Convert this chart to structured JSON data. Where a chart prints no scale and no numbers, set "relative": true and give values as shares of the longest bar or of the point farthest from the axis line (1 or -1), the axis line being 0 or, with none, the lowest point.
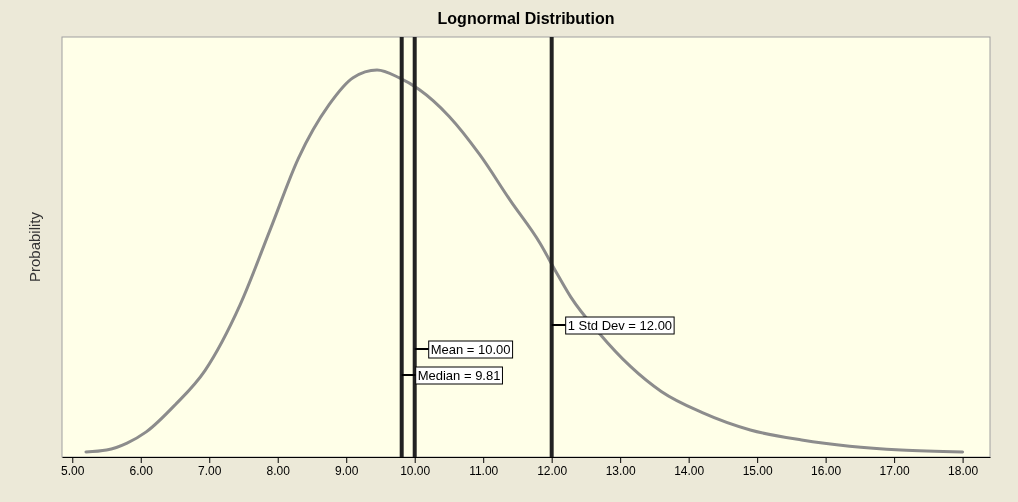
{
  "chart_data": {
    "type": "line",
    "title": "Lognormal Distribution",
    "ylabel": "Probability",
    "relative": true,
    "marker": "none",
    "line_style": "solid",
    "x": [
      5.2,
      5.5,
      5.8,
      6.08,
      6.5,
      6.94,
      7.45,
      7.9,
      8.3,
      8.75,
      9.1,
      9.45,
      9.77,
      10.06,
      10.5,
      10.95,
      11.4,
      11.83,
      12.05,
      12.28,
      12.7,
      13.15,
      13.6,
      14.2,
      14.9,
      15.65,
      16.35,
      17.1,
      18.0
    ],
    "series": [
      {
        "color": "#8c8c8c",
        "values": [
          0.008,
          0.013,
          0.031,
          0.06,
          0.13,
          0.22,
          0.39,
          0.59,
          0.77,
          0.91,
          0.98,
          1.0,
          0.98,
          0.95,
          0.88,
          0.78,
          0.66,
          0.55,
          0.48,
          0.41,
          0.315,
          0.23,
          0.165,
          0.11,
          0.065,
          0.039,
          0.023,
          0.013,
          0.008
        ]
      }
    ],
    "xlim": [
      4.85,
      18.4
    ],
    "xticks": [
      {
        "value": 5,
        "label": "5.00"
      },
      {
        "value": 6,
        "label": "6.00"
      },
      {
        "value": 7,
        "label": "7.00"
      },
      {
        "value": 8,
        "label": "8.00"
      },
      {
        "value": 9,
        "label": "9.00"
      },
      {
        "value": 10,
        "label": "10.00"
      },
      {
        "value": 11,
        "label": "11.00"
      },
      {
        "value": 12,
        "label": "12.00"
      },
      {
        "value": 13,
        "label": "13.00"
      },
      {
        "value": 14,
        "label": "14.00"
      },
      {
        "value": 15,
        "label": "15.00"
      },
      {
        "value": 16,
        "label": "16.00"
      },
      {
        "value": 17,
        "label": "17.00"
      },
      {
        "value": 18,
        "label": "18.00"
      }
    ],
    "ref_lines": [
      {
        "axis": "x",
        "value": 9.81,
        "label": "Median = 9.81",
        "color": "#222222"
      },
      {
        "axis": "x",
        "value": 10.0,
        "label": "Mean = 10.00",
        "color": "#222222"
      },
      {
        "axis": "x",
        "value": 12.0,
        "label": "1 Std Dev = 12.00",
        "color": "#222222"
      }
    ]
  }
}
